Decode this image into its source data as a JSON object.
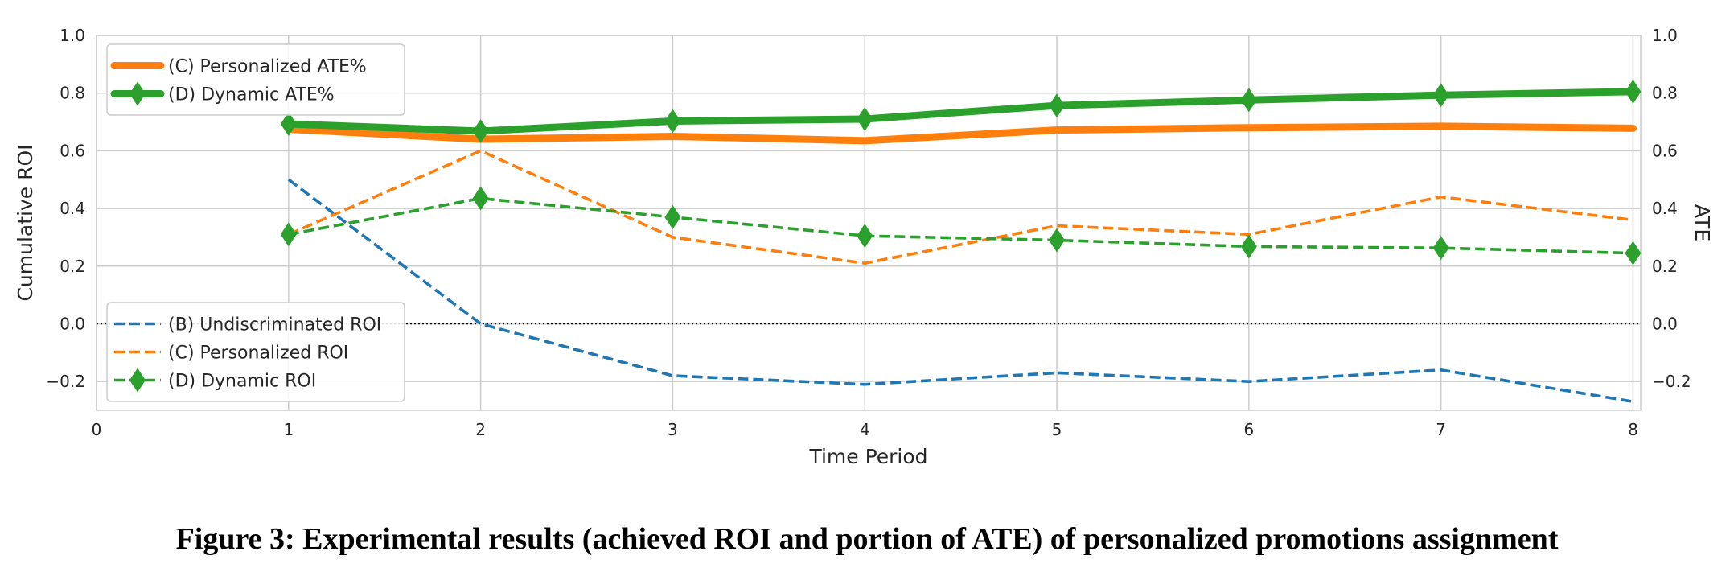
{
  "caption": "Figure 3: Experimental results (achieved ROI and portion of ATE) of personalized promotions assignment",
  "chart_data": {
    "type": "line",
    "xlabel": "Time Period",
    "ylabel": "Cumulative ROI",
    "y2label": "ATE",
    "xlim": [
      0,
      8.04
    ],
    "ylim": [
      -0.3,
      1.0
    ],
    "y2lim": [
      -0.3,
      1.0
    ],
    "xticks": [
      0,
      1,
      2,
      3,
      4,
      5,
      6,
      7,
      8
    ],
    "yticks": [
      -0.2,
      0.0,
      0.2,
      0.4,
      0.6,
      0.8,
      1.0
    ],
    "y2ticks": [
      -0.2,
      0.0,
      0.2,
      0.4,
      0.6,
      0.8,
      1.0
    ],
    "grid": true,
    "zero_line": true,
    "x": [
      1,
      2,
      3,
      4,
      5,
      6,
      7,
      8
    ],
    "series": [
      {
        "name": "(C) Personalized ATE%",
        "axis": "right",
        "style": "solid",
        "color": "#ff7f0e",
        "marker": "none",
        "values": [
          0.675,
          0.64,
          0.65,
          0.635,
          0.672,
          0.68,
          0.685,
          0.678
        ]
      },
      {
        "name": "(D) Dynamic ATE%",
        "axis": "right",
        "style": "solid",
        "color": "#2ca02c",
        "marker": "diamond",
        "values": [
          0.693,
          0.668,
          0.703,
          0.71,
          0.757,
          0.776,
          0.793,
          0.805
        ]
      },
      {
        "name": "(B) Undiscriminated ROI",
        "axis": "left",
        "style": "dashed",
        "color": "#1f77b4",
        "marker": "none",
        "values": [
          0.5,
          0.0,
          -0.18,
          -0.21,
          -0.17,
          -0.2,
          -0.16,
          -0.27
        ]
      },
      {
        "name": "(C) Personalized ROI",
        "axis": "left",
        "style": "dashed",
        "color": "#ff7f0e",
        "marker": "none",
        "values": [
          0.31,
          0.6,
          0.3,
          0.21,
          0.34,
          0.31,
          0.44,
          0.36
        ]
      },
      {
        "name": "(D) Dynamic ROI",
        "axis": "left",
        "style": "dashed",
        "color": "#2ca02c",
        "marker": "diamond",
        "values": [
          0.31,
          0.435,
          0.37,
          0.305,
          0.29,
          0.268,
          0.263,
          0.245
        ]
      }
    ],
    "legends": [
      {
        "placement": "upper-left",
        "entries": [
          0,
          1
        ]
      },
      {
        "placement": "lower-left",
        "entries": [
          2,
          3,
          4
        ]
      }
    ]
  }
}
